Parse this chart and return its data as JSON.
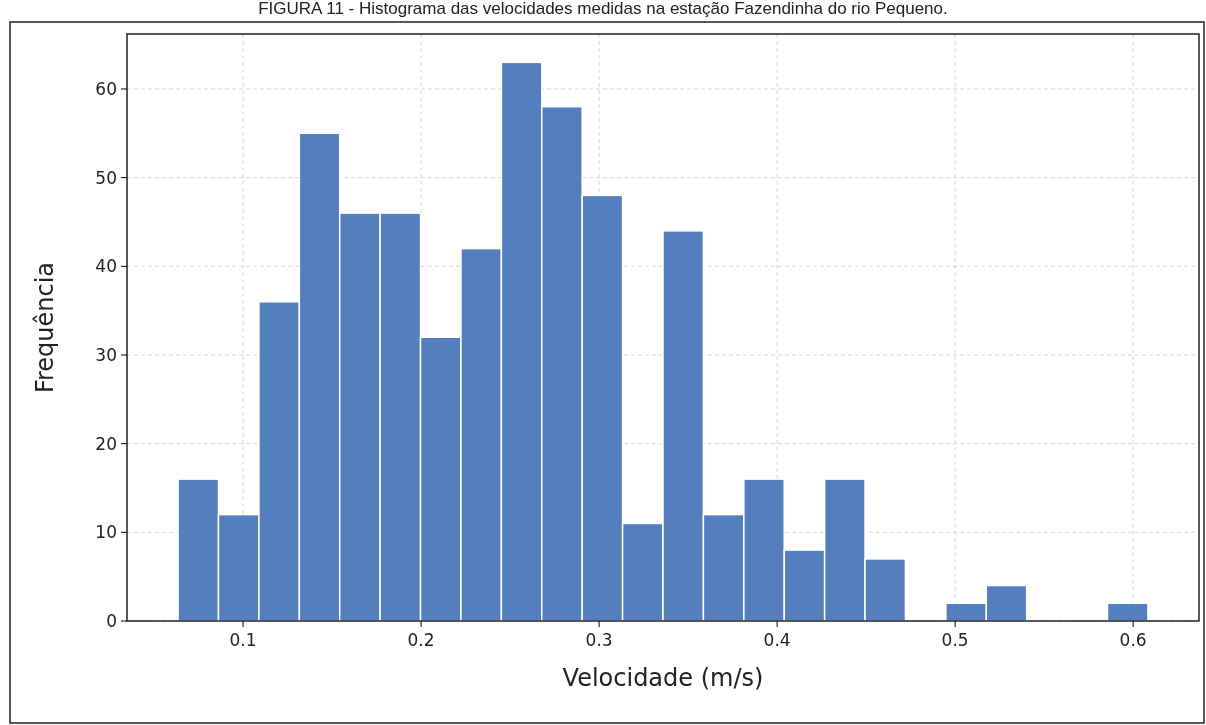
{
  "chart_data": {
    "type": "histogram",
    "title": "FIGURA 11 - Histograma das velocidades medidas na estação Fazendinha do rio Pequeno.",
    "xlabel": "Velocidade (m/s)",
    "ylabel": "Frequência",
    "bins": [
      0.0635,
      0.0862,
      0.1089,
      0.1316,
      0.1543,
      0.177,
      0.1997,
      0.2224,
      0.2451,
      0.2678,
      0.2905,
      0.3132,
      0.3359,
      0.3586,
      0.3813,
      0.404,
      0.4267,
      0.4494,
      0.4721,
      0.4948,
      0.5175,
      0.5402,
      0.5629,
      0.5856,
      0.6083
    ],
    "values": [
      16,
      12,
      36,
      55,
      46,
      46,
      32,
      42,
      63,
      58,
      48,
      11,
      44,
      12,
      16,
      8,
      16,
      7,
      0,
      2,
      4,
      0,
      0,
      2
    ],
    "color": "#557ebf",
    "xlim": [
      0.0348,
      0.637
    ],
    "ylim": [
      0,
      66.2
    ],
    "xticks": [
      0.1,
      0.2,
      0.3,
      0.4,
      0.5,
      0.6
    ],
    "yticks": [
      0,
      10,
      20,
      30,
      40,
      50,
      60
    ],
    "grid": true
  }
}
